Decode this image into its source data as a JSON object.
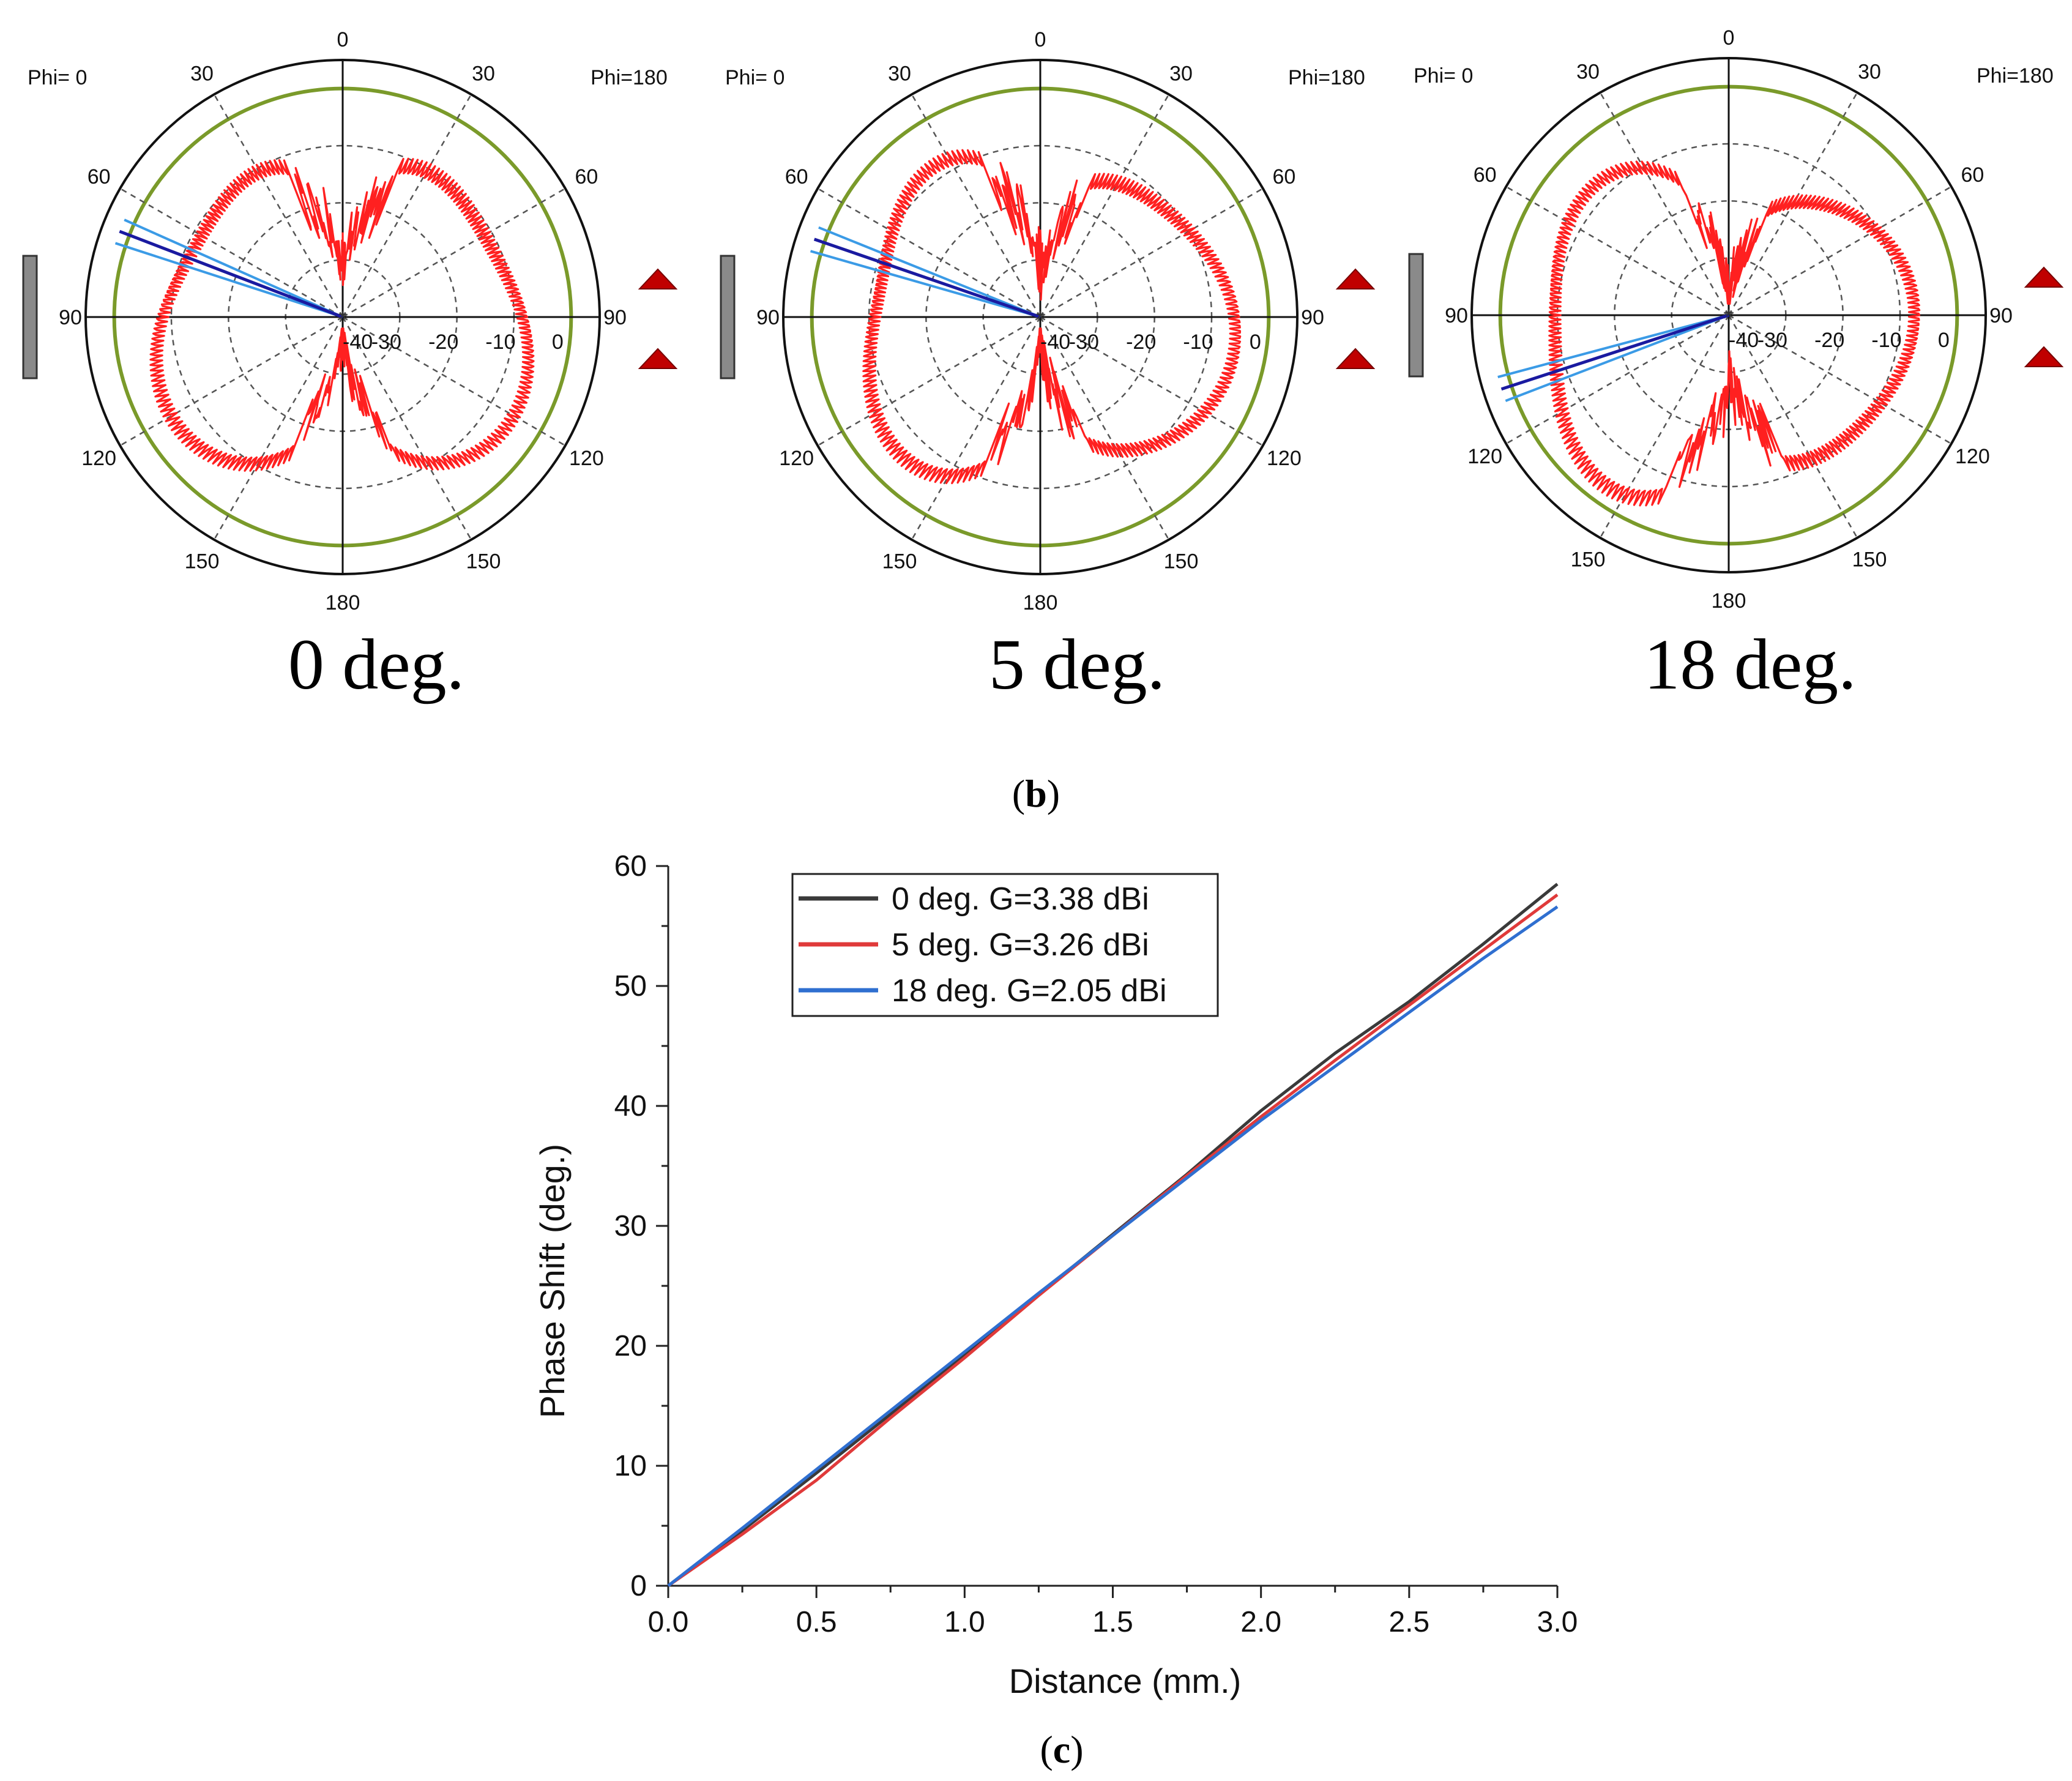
{
  "figure": {
    "panel_b_label": "b",
    "panel_c_label": "c",
    "paren_open": "(",
    "paren_close": ")"
  },
  "chart_data": [
    {
      "type": "polar",
      "panel": "b",
      "caption": "0 deg.",
      "phi_left": "Phi=  0",
      "phi_right": "Phi=180",
      "angle_labels_left": [
        "0",
        "30",
        "60",
        "90",
        "120",
        "150",
        "180"
      ],
      "angle_labels_right": [
        "30",
        "60",
        "90",
        "120",
        "150"
      ],
      "radial_labels": [
        "-40",
        "-30",
        "-20",
        "-10",
        "0"
      ],
      "radial_range": [
        -40,
        5
      ],
      "beam_angle_deg": 69,
      "colors": {
        "pattern": "#ff2020",
        "outer_ring": "#7a9a2a",
        "beam_main": "#1a1aa0",
        "beam_side": "#3b9be6",
        "marker": "#c00000",
        "bar": "#8a8a8a"
      }
    },
    {
      "type": "polar",
      "panel": "b",
      "caption": "5 deg.",
      "phi_left": "Phi=  0",
      "phi_right": "Phi=180",
      "angle_labels_left": [
        "0",
        "30",
        "60",
        "90",
        "120",
        "150",
        "180"
      ],
      "angle_labels_right": [
        "30",
        "60",
        "90",
        "120",
        "150"
      ],
      "radial_labels": [
        "-40",
        "-30",
        "-20",
        "-10",
        "0"
      ],
      "radial_range": [
        -40,
        5
      ],
      "beam_angle_deg": 71,
      "colors": {
        "pattern": "#ff2020",
        "outer_ring": "#7a9a2a",
        "beam_main": "#1a1aa0",
        "beam_side": "#3b9be6",
        "marker": "#c00000",
        "bar": "#8a8a8a"
      }
    },
    {
      "type": "polar",
      "panel": "b",
      "caption": "18 deg.",
      "phi_left": "Phi=  0",
      "phi_right": "Phi=180",
      "angle_labels_left": [
        "0",
        "30",
        "60",
        "90",
        "120",
        "150",
        "180"
      ],
      "angle_labels_right": [
        "30",
        "60",
        "90",
        "120",
        "150"
      ],
      "radial_labels": [
        "-40",
        "-30",
        "-20",
        "-10",
        "0"
      ],
      "radial_range": [
        -40,
        5
      ],
      "beam_angle_deg": 108,
      "colors": {
        "pattern": "#ff2020",
        "outer_ring": "#7a9a2a",
        "beam_main": "#1a1aa0",
        "beam_side": "#3b9be6",
        "marker": "#c00000",
        "bar": "#8a8a8a"
      }
    },
    {
      "type": "line",
      "panel": "c",
      "title": "",
      "xlabel": "Distance (mm.)",
      "ylabel": "Phase Shift (deg.)",
      "xlim": [
        0,
        3
      ],
      "ylim": [
        0,
        60
      ],
      "xticks": [
        "0.0",
        "0.5",
        "1.0",
        "1.5",
        "2.0",
        "2.5",
        "3.0"
      ],
      "yticks": [
        "0",
        "10",
        "20",
        "30",
        "40",
        "50",
        "60"
      ],
      "x": [
        0,
        0.25,
        0.5,
        0.75,
        1.0,
        1.25,
        1.5,
        1.75,
        2.0,
        2.25,
        2.5,
        2.75,
        3.0
      ],
      "series": [
        {
          "name": "0 deg. G=3.38 dBi",
          "color": "#3a3a3a",
          "values": [
            0,
            4.6,
            9.4,
            14.3,
            19.3,
            24.3,
            29.3,
            34.3,
            39.6,
            44.4,
            48.7,
            53.5,
            58.5
          ]
        },
        {
          "name": "5 deg. G=3.26 dBi",
          "color": "#e03a3a",
          "values": [
            0,
            4.3,
            8.8,
            14.0,
            19.0,
            24.2,
            29.2,
            34.2,
            39.1,
            43.8,
            48.4,
            53.0,
            57.6
          ]
        },
        {
          "name": "18 deg. G=2.05 dBi",
          "color": "#2f6fd0",
          "values": [
            0,
            4.8,
            9.7,
            14.6,
            19.5,
            24.4,
            29.2,
            34.0,
            38.8,
            43.3,
            47.8,
            52.3,
            56.6
          ]
        }
      ],
      "legend_position": "top-left",
      "grid": false
    }
  ]
}
